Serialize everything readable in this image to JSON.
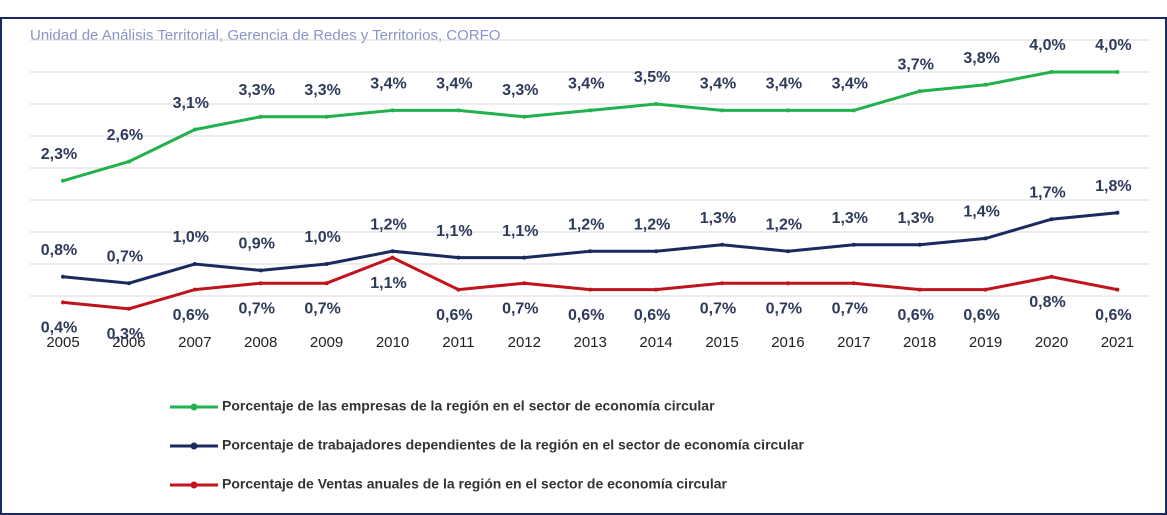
{
  "chart_data": {
    "type": "line",
    "subtitle": "Unidad de Análisis Territorial,  Gerencia de Redes y Territorios, CORFO",
    "categories": [
      "2005",
      "2006",
      "2007",
      "2008",
      "2009",
      "2010",
      "2011",
      "2012",
      "2013",
      "2014",
      "2015",
      "2016",
      "2017",
      "2018",
      "2019",
      "2020",
      "2021"
    ],
    "ylim": [
      0,
      4.5
    ],
    "yticks": [
      0.5,
      1,
      1.5,
      2,
      2.5,
      3,
      3.5,
      4,
      4.5
    ],
    "grid": true,
    "series": [
      {
        "name": "Porcentaje de las empresas de la región en el sector de economía circular",
        "color": "#22b14c",
        "values": [
          2.3,
          2.6,
          3.1,
          3.3,
          3.3,
          3.4,
          3.4,
          3.3,
          3.4,
          3.5,
          3.4,
          3.4,
          3.4,
          3.7,
          3.8,
          4.0,
          4.0
        ],
        "value_labels": [
          "2,3%",
          "2,6%",
          "3,1%",
          "3,3%",
          "3,3%",
          "3,4%",
          "3,4%",
          "3,3%",
          "3,4%",
          "3,5%",
          "3,4%",
          "3,4%",
          "3,4%",
          "3,7%",
          "3,8%",
          "4,0%",
          "4,0%"
        ]
      },
      {
        "name": "Porcentaje de trabajadores dependientes de la región en el sector de economía circular",
        "color": "#1a2a5e",
        "values": [
          0.8,
          0.7,
          1.0,
          0.9,
          1.0,
          1.2,
          1.1,
          1.1,
          1.2,
          1.2,
          1.3,
          1.2,
          1.3,
          1.3,
          1.4,
          1.7,
          1.8
        ],
        "value_labels": [
          "0,8%",
          "0,7%",
          "1,0%",
          "0,9%",
          "1,0%",
          "1,2%",
          "1,1%",
          "1,1%",
          "1,2%",
          "1,2%",
          "1,3%",
          "1,2%",
          "1,3%",
          "1,3%",
          "1,4%",
          "1,7%",
          "1,8%"
        ]
      },
      {
        "name": "Porcentaje de Ventas anuales de la región en el sector de economía circular",
        "color": "#c0141c",
        "values": [
          0.4,
          0.3,
          0.6,
          0.7,
          0.7,
          1.1,
          0.6,
          0.7,
          0.6,
          0.6,
          0.7,
          0.7,
          0.7,
          0.6,
          0.6,
          0.8,
          0.6
        ],
        "value_labels": [
          "0,4%",
          "0,3%",
          "0,6%",
          "0,7%",
          "0,7%",
          "1,1%",
          "0,6%",
          "0,7%",
          "0,6%",
          "0,6%",
          "0,7%",
          "0,7%",
          "0,7%",
          "0,6%",
          "0,6%",
          "0,8%",
          "0,6%"
        ]
      }
    ]
  }
}
